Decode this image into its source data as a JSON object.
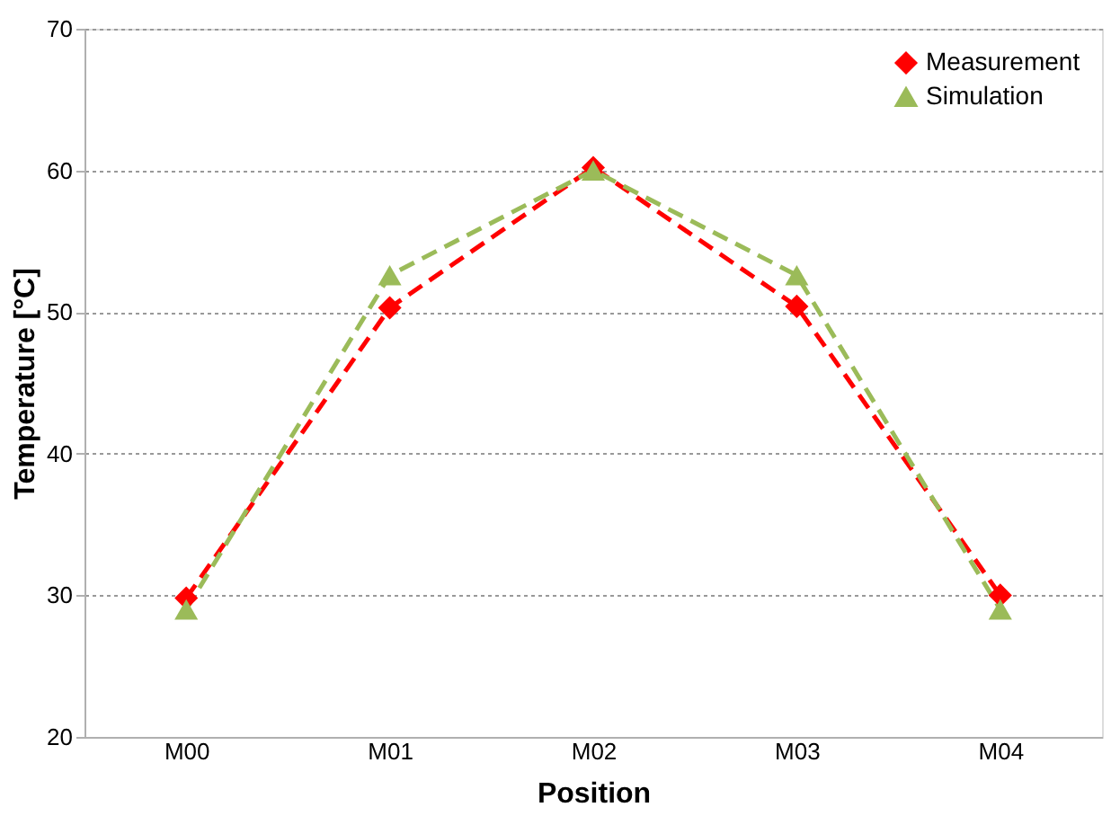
{
  "chart_data": {
    "type": "line",
    "categories": [
      "M00",
      "M01",
      "M02",
      "M03",
      "M04"
    ],
    "series": [
      {
        "name": "Measurement",
        "color": "#ff0000",
        "marker": "diamond",
        "values": [
          29.8,
          50.3,
          60.2,
          50.4,
          30.0
        ]
      },
      {
        "name": "Simulation",
        "color": "#9bbb59",
        "marker": "triangle",
        "values": [
          29.0,
          52.6,
          60.0,
          52.6,
          29.0
        ]
      }
    ],
    "xlabel": "Position",
    "ylabel": "Temperature [°C]",
    "ylim": [
      20,
      70
    ],
    "yticks": [
      20,
      30,
      40,
      50,
      60,
      70
    ],
    "grid": "y",
    "legend": "top right",
    "line_style": "dashed"
  }
}
